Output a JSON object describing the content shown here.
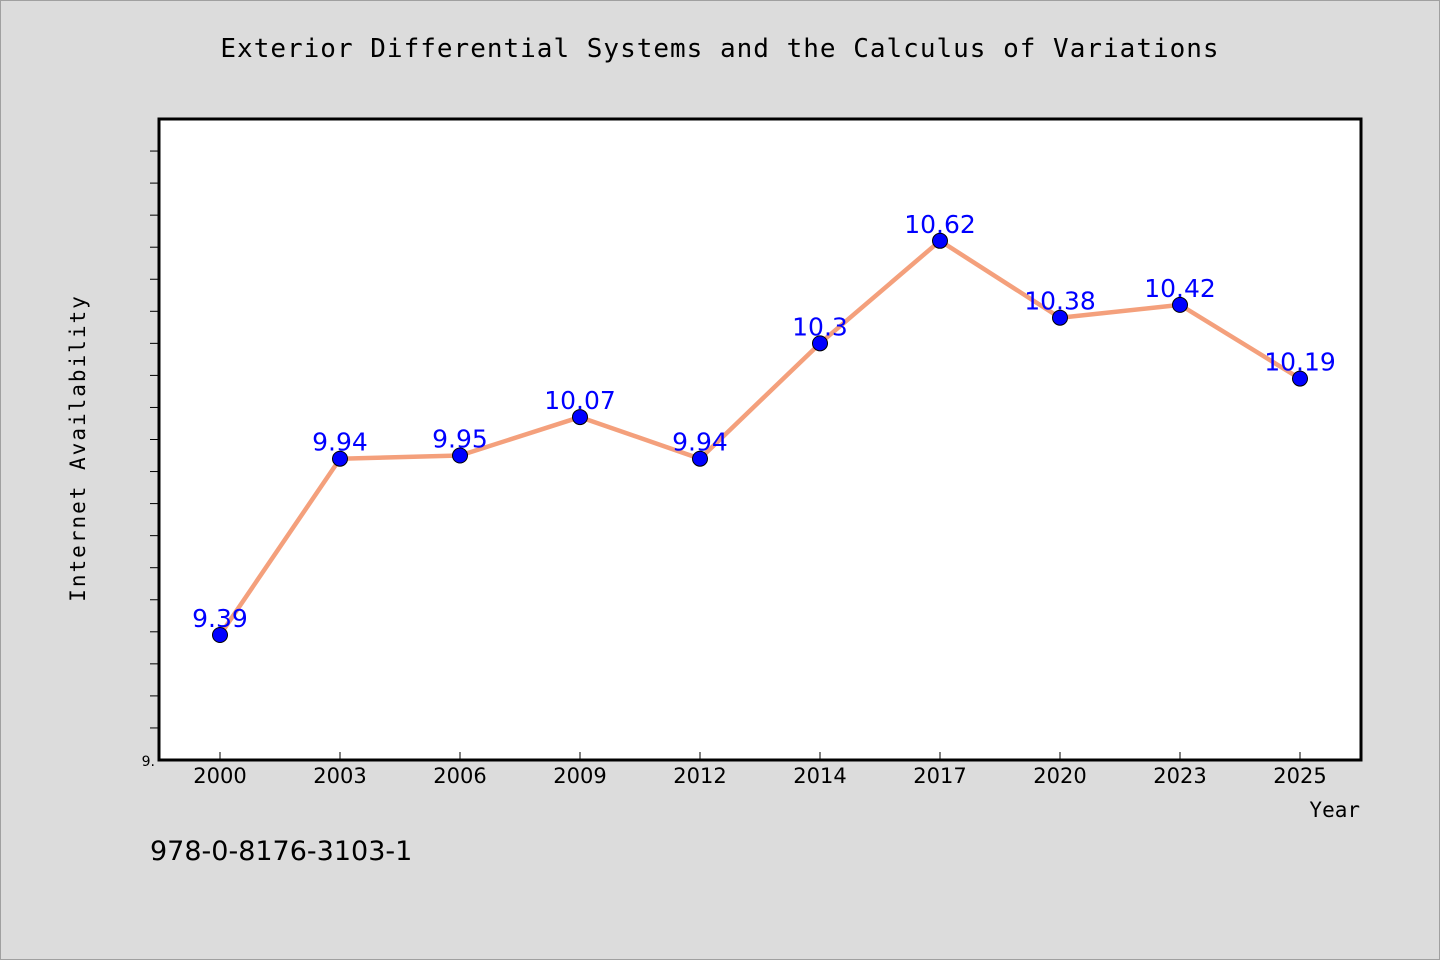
{
  "chart_data": {
    "type": "line",
    "title": "Exterior Differential Systems and the Calculus of Variations",
    "xlabel": "Year",
    "ylabel": "Internet Availability",
    "categories": [
      "2000",
      "2003",
      "2006",
      "2009",
      "2012",
      "2014",
      "2017",
      "2020",
      "2023",
      "2025"
    ],
    "series": [
      {
        "values": [
          9.39,
          9.94,
          9.95,
          10.07,
          9.94,
          10.3,
          10.62,
          10.38,
          10.42,
          10.19
        ],
        "labels": [
          "9.39",
          "9.94",
          "9.95",
          "10.07",
          "9.94",
          "10.3",
          "10.62",
          "10.38",
          "10.42",
          "10.19"
        ],
        "line_color": "#f4a07c",
        "marker_color": "#0000ff"
      }
    ],
    "ylim": [
      9.0,
      11.0
    ],
    "y_tick_label": "9.",
    "grid": false,
    "legend": "none"
  },
  "footer": {
    "isbn": "978-0-8176-3103-1"
  }
}
